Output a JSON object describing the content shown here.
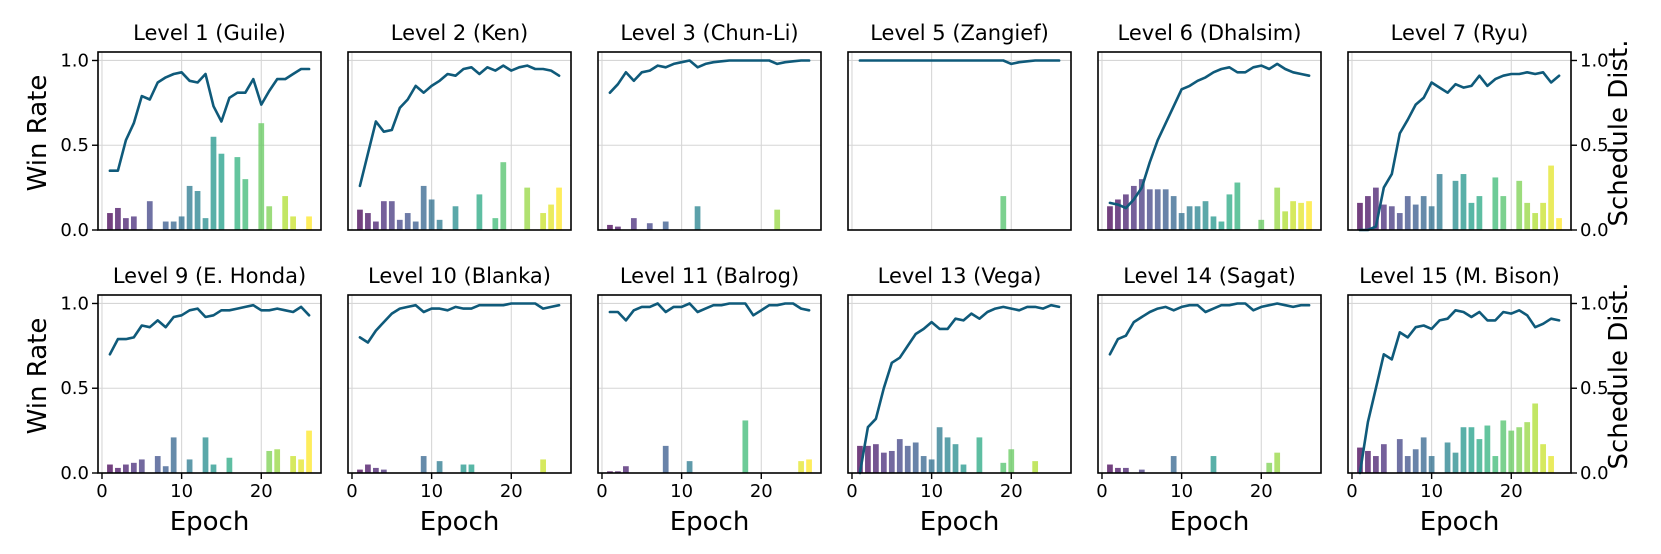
{
  "figure": {
    "left_axis_label": "Win Rate",
    "right_axis_label": "Schedule Dist.",
    "x_axis_label": "Epoch",
    "line_color": "#0f5a7a",
    "bar_colormap": "viridis",
    "bar_opacity": 0.75,
    "x_ticks": [
      0,
      10,
      20
    ],
    "y_ticks": [
      0.0,
      0.5,
      1.0
    ],
    "y_tick_labels": [
      "0.0",
      "0.5",
      "1.0"
    ]
  },
  "chart_data": [
    {
      "type": "line+bar",
      "title": "Level 1 (Guile)",
      "xlim": [
        -0.5,
        27.5
      ],
      "ylim": [
        0,
        1.05
      ],
      "x": [
        1,
        2,
        3,
        4,
        5,
        6,
        7,
        8,
        9,
        10,
        11,
        12,
        13,
        14,
        15,
        16,
        17,
        18,
        19,
        20,
        21,
        22,
        23,
        24,
        25,
        26
      ],
      "win_rate": [
        0.35,
        0.35,
        0.53,
        0.63,
        0.79,
        0.77,
        0.87,
        0.9,
        0.92,
        0.93,
        0.88,
        0.87,
        0.92,
        0.73,
        0.64,
        0.78,
        0.81,
        0.81,
        0.89,
        0.74,
        0.82,
        0.89,
        0.89,
        0.92,
        0.95,
        0.95
      ],
      "schedule": [
        0.1,
        0.13,
        0.07,
        0.08,
        0,
        0.17,
        0,
        0.05,
        0.05,
        0.08,
        0.26,
        0.23,
        0.07,
        0.55,
        0.45,
        0,
        0.43,
        0.3,
        0,
        0.63,
        0.14,
        0,
        0.2,
        0.08,
        0,
        0.08
      ]
    },
    {
      "type": "line+bar",
      "title": "Level 2 (Ken)",
      "xlim": [
        -0.5,
        27.5
      ],
      "ylim": [
        0,
        1.05
      ],
      "x": [
        1,
        2,
        3,
        4,
        5,
        6,
        7,
        8,
        9,
        10,
        11,
        12,
        13,
        14,
        15,
        16,
        17,
        18,
        19,
        20,
        21,
        22,
        23,
        24,
        25,
        26
      ],
      "win_rate": [
        0.26,
        0.45,
        0.64,
        0.58,
        0.59,
        0.72,
        0.77,
        0.85,
        0.81,
        0.85,
        0.88,
        0.92,
        0.91,
        0.95,
        0.96,
        0.92,
        0.96,
        0.94,
        0.97,
        0.94,
        0.96,
        0.97,
        0.95,
        0.95,
        0.94,
        0.91
      ],
      "schedule": [
        0.12,
        0.1,
        0.05,
        0.17,
        0.17,
        0.06,
        0.1,
        0.05,
        0.26,
        0.18,
        0.06,
        0,
        0.14,
        0,
        0,
        0.21,
        0,
        0.07,
        0.4,
        0,
        0,
        0.25,
        0,
        0.1,
        0.15,
        0.25
      ]
    },
    {
      "type": "line+bar",
      "title": "Level 3 (Chun-Li)",
      "xlim": [
        -0.5,
        27.5
      ],
      "ylim": [
        0,
        1.05
      ],
      "x": [
        1,
        2,
        3,
        4,
        5,
        6,
        7,
        8,
        9,
        10,
        11,
        12,
        13,
        14,
        15,
        16,
        17,
        18,
        19,
        20,
        21,
        22,
        23,
        24,
        25,
        26
      ],
      "win_rate": [
        0.81,
        0.86,
        0.93,
        0.88,
        0.93,
        0.94,
        0.97,
        0.96,
        0.98,
        0.99,
        1.0,
        0.96,
        0.98,
        0.99,
        0.995,
        1.0,
        1.0,
        1.0,
        1.0,
        1.0,
        1.0,
        0.98,
        0.99,
        0.995,
        1.0,
        1.0
      ],
      "schedule": [
        0.03,
        0.02,
        0,
        0.07,
        0,
        0.04,
        0,
        0.05,
        0,
        0,
        0,
        0.14,
        0,
        0,
        0,
        0,
        0,
        0,
        0,
        0,
        0,
        0.12,
        0,
        0,
        0,
        0
      ]
    },
    {
      "type": "line+bar",
      "title": "Level 5 (Zangief)",
      "xlim": [
        -0.5,
        27.5
      ],
      "ylim": [
        0,
        1.05
      ],
      "x": [
        1,
        2,
        3,
        4,
        5,
        6,
        7,
        8,
        9,
        10,
        11,
        12,
        13,
        14,
        15,
        16,
        17,
        18,
        19,
        20,
        21,
        22,
        23,
        24,
        25,
        26
      ],
      "win_rate": [
        1.0,
        1.0,
        1.0,
        1.0,
        1.0,
        1.0,
        1.0,
        1.0,
        1.0,
        1.0,
        1.0,
        1.0,
        1.0,
        1.0,
        1.0,
        1.0,
        1.0,
        1.0,
        1.0,
        0.98,
        0.99,
        0.995,
        1.0,
        1.0,
        1.0,
        1.0
      ],
      "schedule": [
        0,
        0,
        0,
        0,
        0,
        0,
        0,
        0,
        0,
        0,
        0,
        0,
        0,
        0,
        0,
        0,
        0,
        0,
        0.2,
        0,
        0,
        0,
        0,
        0,
        0,
        0
      ]
    },
    {
      "type": "line+bar",
      "title": "Level 6 (Dhalsim)",
      "xlim": [
        -0.5,
        27.5
      ],
      "ylim": [
        0,
        1.05
      ],
      "x": [
        1,
        2,
        3,
        4,
        5,
        6,
        7,
        8,
        9,
        10,
        11,
        12,
        13,
        14,
        15,
        16,
        17,
        18,
        19,
        20,
        21,
        22,
        23,
        24,
        25,
        26
      ],
      "win_rate": [
        0.16,
        0.15,
        0.13,
        0.18,
        0.25,
        0.4,
        0.53,
        0.63,
        0.73,
        0.83,
        0.85,
        0.88,
        0.9,
        0.93,
        0.95,
        0.96,
        0.93,
        0.93,
        0.96,
        0.97,
        0.95,
        0.98,
        0.95,
        0.93,
        0.92,
        0.91
      ],
      "schedule": [
        0.14,
        0.18,
        0.21,
        0.26,
        0.3,
        0.24,
        0.24,
        0.24,
        0.2,
        0.1,
        0.14,
        0.14,
        0.17,
        0.08,
        0.05,
        0.21,
        0.28,
        0,
        0,
        0.06,
        0,
        0.25,
        0.11,
        0.17,
        0.16,
        0.17
      ]
    },
    {
      "type": "line+bar",
      "title": "Level 7 (Ryu)",
      "xlim": [
        -0.5,
        27.5
      ],
      "ylim": [
        0,
        1.05
      ],
      "x": [
        1,
        2,
        3,
        4,
        5,
        6,
        7,
        8,
        9,
        10,
        11,
        12,
        13,
        14,
        15,
        16,
        17,
        18,
        19,
        20,
        21,
        22,
        23,
        24,
        25,
        26
      ],
      "win_rate": [
        0.0,
        0.0,
        0.02,
        0.25,
        0.33,
        0.57,
        0.65,
        0.74,
        0.78,
        0.87,
        0.84,
        0.81,
        0.86,
        0.84,
        0.85,
        0.91,
        0.85,
        0.89,
        0.91,
        0.92,
        0.92,
        0.93,
        0.92,
        0.93,
        0.87,
        0.91
      ],
      "schedule": [
        0.16,
        0.2,
        0.25,
        0.15,
        0.14,
        0.1,
        0.2,
        0.15,
        0.2,
        0.14,
        0.33,
        0,
        0.29,
        0.33,
        0.16,
        0.2,
        0,
        0.31,
        0.2,
        0,
        0.29,
        0.16,
        0.1,
        0.16,
        0.38,
        0.07
      ]
    },
    {
      "type": "line+bar",
      "title": "Level 9 (E. Honda)",
      "xlim": [
        -0.5,
        27.5
      ],
      "ylim": [
        0,
        1.05
      ],
      "x": [
        1,
        2,
        3,
        4,
        5,
        6,
        7,
        8,
        9,
        10,
        11,
        12,
        13,
        14,
        15,
        16,
        17,
        18,
        19,
        20,
        21,
        22,
        23,
        24,
        25,
        26
      ],
      "win_rate": [
        0.7,
        0.79,
        0.79,
        0.8,
        0.87,
        0.86,
        0.9,
        0.86,
        0.92,
        0.93,
        0.96,
        0.97,
        0.92,
        0.93,
        0.96,
        0.96,
        0.97,
        0.98,
        0.99,
        0.96,
        0.96,
        0.97,
        0.96,
        0.95,
        0.98,
        0.93
      ],
      "schedule": [
        0.05,
        0.03,
        0.05,
        0.06,
        0.08,
        0,
        0.1,
        0.04,
        0.21,
        0,
        0.08,
        0,
        0.21,
        0.05,
        0,
        0.09,
        0,
        0,
        0,
        0,
        0.13,
        0.14,
        0,
        0.1,
        0.08,
        0.25
      ]
    },
    {
      "type": "line+bar",
      "title": "Level 10 (Blanka)",
      "xlim": [
        -0.5,
        27.5
      ],
      "ylim": [
        0,
        1.05
      ],
      "x": [
        1,
        2,
        3,
        4,
        5,
        6,
        7,
        8,
        9,
        10,
        11,
        12,
        13,
        14,
        15,
        16,
        17,
        18,
        19,
        20,
        21,
        22,
        23,
        24,
        25,
        26
      ],
      "win_rate": [
        0.8,
        0.77,
        0.84,
        0.89,
        0.94,
        0.97,
        0.98,
        0.99,
        0.95,
        0.97,
        0.97,
        0.96,
        0.98,
        0.97,
        0.97,
        0.99,
        0.99,
        0.99,
        0.99,
        1.0,
        1.0,
        1.0,
        1.0,
        0.97,
        0.98,
        0.99
      ],
      "schedule": [
        0.02,
        0.05,
        0.03,
        0.02,
        0,
        0,
        0,
        0,
        0.1,
        0,
        0.07,
        0,
        0,
        0.05,
        0.05,
        0,
        0,
        0,
        0,
        0,
        0,
        0,
        0,
        0.08,
        0,
        0
      ]
    },
    {
      "type": "line+bar",
      "title": "Level 11 (Balrog)",
      "xlim": [
        -0.5,
        27.5
      ],
      "ylim": [
        0,
        1.05
      ],
      "x": [
        1,
        2,
        3,
        4,
        5,
        6,
        7,
        8,
        9,
        10,
        11,
        12,
        13,
        14,
        15,
        16,
        17,
        18,
        19,
        20,
        21,
        22,
        23,
        24,
        25,
        26
      ],
      "win_rate": [
        0.95,
        0.95,
        0.9,
        0.96,
        0.98,
        0.98,
        1.0,
        0.95,
        0.98,
        0.98,
        1.0,
        0.95,
        0.97,
        0.99,
        0.99,
        1.0,
        1.0,
        1.0,
        0.93,
        0.96,
        0.99,
        0.99,
        1.0,
        1.0,
        0.97,
        0.96
      ],
      "schedule": [
        0.01,
        0.01,
        0.04,
        0,
        0,
        0,
        0,
        0.16,
        0,
        0,
        0.07,
        0,
        0,
        0,
        0,
        0,
        0,
        0.31,
        0,
        0,
        0,
        0,
        0,
        0,
        0.07,
        0.08
      ]
    },
    {
      "type": "line+bar",
      "title": "Level 13 (Vega)",
      "xlim": [
        -0.5,
        27.5
      ],
      "ylim": [
        0,
        1.05
      ],
      "x": [
        1,
        2,
        3,
        4,
        5,
        6,
        7,
        8,
        9,
        10,
        11,
        12,
        13,
        14,
        15,
        16,
        17,
        18,
        19,
        20,
        21,
        22,
        23,
        24,
        25,
        26
      ],
      "win_rate": [
        0.0,
        0.27,
        0.32,
        0.5,
        0.65,
        0.68,
        0.75,
        0.82,
        0.85,
        0.89,
        0.85,
        0.85,
        0.91,
        0.9,
        0.94,
        0.91,
        0.95,
        0.97,
        0.98,
        0.97,
        0.96,
        0.98,
        0.98,
        0.97,
        0.99,
        0.98
      ],
      "schedule": [
        0.16,
        0.16,
        0.17,
        0.12,
        0.13,
        0.2,
        0.16,
        0.18,
        0.1,
        0.08,
        0.27,
        0.21,
        0.17,
        0.05,
        0,
        0.21,
        0,
        0,
        0.06,
        0.14,
        0,
        0,
        0.07,
        0,
        0,
        0
      ]
    },
    {
      "type": "line+bar",
      "title": "Level 14 (Sagat)",
      "xlim": [
        -0.5,
        27.5
      ],
      "ylim": [
        0,
        1.05
      ],
      "x": [
        1,
        2,
        3,
        4,
        5,
        6,
        7,
        8,
        9,
        10,
        11,
        12,
        13,
        14,
        15,
        16,
        17,
        18,
        19,
        20,
        21,
        22,
        23,
        24,
        25,
        26
      ],
      "win_rate": [
        0.7,
        0.79,
        0.81,
        0.89,
        0.92,
        0.95,
        0.97,
        0.98,
        0.96,
        0.98,
        0.99,
        0.99,
        0.95,
        0.97,
        0.99,
        0.99,
        1.0,
        1.0,
        0.96,
        0.98,
        0.99,
        1.0,
        0.99,
        0.98,
        0.99,
        0.99
      ],
      "schedule": [
        0.05,
        0.03,
        0.03,
        0,
        0.02,
        0,
        0,
        0,
        0.1,
        0,
        0,
        0,
        0,
        0.1,
        0,
        0,
        0,
        0,
        0,
        0,
        0.06,
        0.12,
        0,
        0,
        0,
        0
      ]
    },
    {
      "type": "line+bar",
      "title": "Level 15 (M. Bison)",
      "xlim": [
        -0.5,
        27.5
      ],
      "ylim": [
        0,
        1.05
      ],
      "x": [
        1,
        2,
        3,
        4,
        5,
        6,
        7,
        8,
        9,
        10,
        11,
        12,
        13,
        14,
        15,
        16,
        17,
        18,
        19,
        20,
        21,
        22,
        23,
        24,
        25,
        26
      ],
      "win_rate": [
        0.0,
        0.3,
        0.5,
        0.7,
        0.67,
        0.83,
        0.8,
        0.86,
        0.87,
        0.85,
        0.9,
        0.91,
        0.96,
        0.95,
        0.92,
        0.95,
        0.9,
        0.9,
        0.95,
        0.94,
        0.96,
        0.93,
        0.86,
        0.88,
        0.91,
        0.9
      ],
      "schedule": [
        0.15,
        0.13,
        0.1,
        0.17,
        0,
        0.2,
        0.1,
        0.14,
        0.21,
        0.1,
        0,
        0.18,
        0.12,
        0.27,
        0.27,
        0.2,
        0.28,
        0.1,
        0.31,
        0.25,
        0.27,
        0.3,
        0.41,
        0.17,
        0.1,
        0
      ]
    }
  ]
}
